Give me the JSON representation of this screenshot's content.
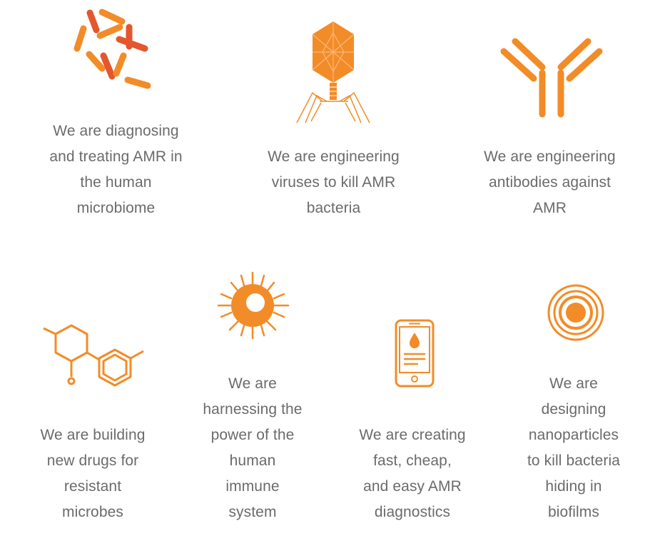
{
  "accent": "#F28C28",
  "accent_dark": "#E4572E",
  "text_color": "#6B6B6B",
  "items": [
    {
      "icon": "bacteria-icon",
      "lines": [
        "We are diagnosing",
        "and treating AMR in",
        "the human",
        "microbiome"
      ]
    },
    {
      "icon": "bacteriophage-virus-icon",
      "lines": [
        "We are engineering",
        "viruses to kill AMR",
        "bacteria"
      ]
    },
    {
      "icon": "antibody-icon",
      "lines": [
        "We are engineering",
        "antibodies against",
        "AMR"
      ]
    },
    {
      "icon": "molecule-structure-icon",
      "lines": [
        "We are building",
        "new drugs for",
        "resistant",
        "microbes"
      ]
    },
    {
      "icon": "immune-cell-icon",
      "lines": [
        "We are",
        "harnessing the",
        "power of the",
        "human",
        "immune",
        "system"
      ]
    },
    {
      "icon": "smartphone-diagnostic-icon",
      "lines": [
        "We are creating",
        "fast, cheap,",
        "and easy AMR",
        "diagnostics"
      ]
    },
    {
      "icon": "nanoparticle-target-icon",
      "lines": [
        "We are",
        "designing",
        "nanoparticles",
        "to kill bacteria",
        "hiding in",
        "biofilms"
      ]
    }
  ]
}
